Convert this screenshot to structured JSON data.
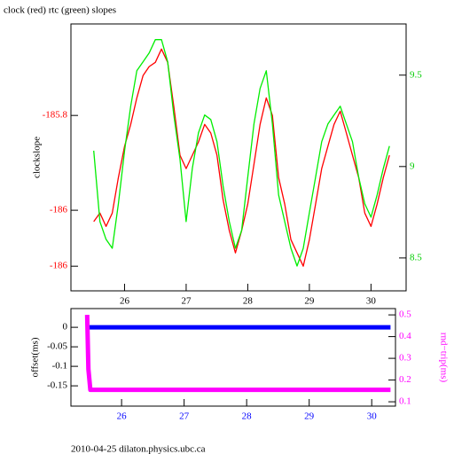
{
  "chart_data": [
    {
      "type": "line",
      "title": "clock (red) rtc (green) slopes",
      "ylabel": "clockslope",
      "x": [
        25.5,
        25.6,
        25.7,
        25.8,
        25.9,
        26.0,
        26.1,
        26.2,
        26.3,
        26.4,
        26.5,
        26.6,
        26.7,
        26.8,
        26.9,
        27.0,
        27.1,
        27.2,
        27.3,
        27.4,
        27.5,
        27.6,
        27.7,
        27.8,
        27.9,
        28.0,
        28.1,
        28.2,
        28.3,
        28.4,
        28.5,
        28.6,
        28.7,
        28.8,
        28.9,
        29.0,
        29.1,
        29.2,
        29.3,
        29.4,
        29.5,
        29.6,
        29.7,
        29.8,
        29.9,
        30.0,
        30.1,
        30.2,
        30.3
      ],
      "series": [
        {
          "name": "clock",
          "color": "#ff0000",
          "axis": "y",
          "values": [
            -186.024,
            -186.006,
            -186.034,
            -186.006,
            -185.931,
            -185.865,
            -185.819,
            -185.763,
            -185.716,
            -185.697,
            -185.688,
            -185.66,
            -185.688,
            -185.781,
            -185.884,
            -185.912,
            -185.884,
            -185.856,
            -185.819,
            -185.837,
            -185.884,
            -185.978,
            -186.043,
            -186.09,
            -186.043,
            -185.987,
            -185.903,
            -185.819,
            -185.763,
            -185.8,
            -185.931,
            -185.987,
            -186.062,
            -186.09,
            -186.118,
            -186.062,
            -185.987,
            -185.912,
            -185.865,
            -185.819,
            -185.791,
            -185.837,
            -185.884,
            -185.931,
            -186.006,
            -186.034,
            -185.987,
            -185.931,
            -185.884
          ]
        },
        {
          "name": "rtc",
          "color": "#00ee00",
          "axis": "y2",
          "values": [
            9.087,
            8.699,
            8.602,
            8.553,
            8.796,
            9.087,
            9.33,
            9.524,
            9.573,
            9.621,
            9.694,
            9.694,
            9.573,
            9.282,
            9.039,
            8.699,
            8.99,
            9.184,
            9.282,
            9.257,
            9.136,
            8.893,
            8.699,
            8.553,
            8.65,
            8.942,
            9.233,
            9.427,
            9.524,
            9.233,
            8.845,
            8.699,
            8.553,
            8.456,
            8.553,
            8.748,
            8.942,
            9.136,
            9.233,
            9.282,
            9.33,
            9.233,
            9.136,
            8.942,
            8.796,
            8.723,
            8.845,
            8.99,
            9.112
          ]
        }
      ],
      "xlim": [
        25.13,
        30.57
      ],
      "xticks": [
        26,
        27,
        28,
        29,
        30
      ],
      "xtick_color": "#000000",
      "ylim": [
        -186.17,
        -185.607
      ],
      "yticks": [
        -185.8,
        -186,
        {
          "value": -186.118,
          "label": "-186"
        }
      ],
      "ytick_color": "#ff0000",
      "y2lim": [
        8.32,
        9.78
      ],
      "y2ticks": [
        8.5,
        9,
        9.5
      ],
      "y2tick_color": "#00cc00"
    },
    {
      "type": "line",
      "ylabel": "offset(ms)",
      "y2label": "rnd−trip(ms)",
      "x": [
        25.45,
        25.47,
        25.5,
        26.0,
        26.5,
        27.0,
        27.5,
        28.0,
        28.5,
        29.0,
        29.5,
        30.0,
        30.3
      ],
      "series": [
        {
          "name": "offset",
          "color": "#0000ff",
          "axis": "y",
          "values": [
            0,
            0,
            0,
            0,
            0,
            0,
            0,
            0,
            0,
            0,
            0,
            0,
            0
          ]
        },
        {
          "name": "rnd-trip",
          "color": "#ff00ff",
          "axis": "y2",
          "values": [
            0.5,
            0.25,
            0.155,
            0.155,
            0.155,
            0.155,
            0.155,
            0.155,
            0.155,
            0.155,
            0.155,
            0.155,
            0.155
          ]
        }
      ],
      "xlim": [
        25.19,
        30.38
      ],
      "xticks": [
        26,
        27,
        28,
        29,
        30
      ],
      "xtick_color": "#0000ff",
      "ylim": [
        -0.202,
        0.048
      ],
      "yticks": [
        0,
        -0.05,
        -0.1,
        -0.15
      ],
      "ytick_color": "#000000",
      "y2lim": [
        0.08,
        0.529
      ],
      "y2ticks": [
        0.1,
        0.2,
        0.3,
        0.4,
        0.5
      ],
      "y2tick_color": "#ff00ff"
    }
  ],
  "footer": "2010-04-25 dilaton.physics.ubc.ca"
}
